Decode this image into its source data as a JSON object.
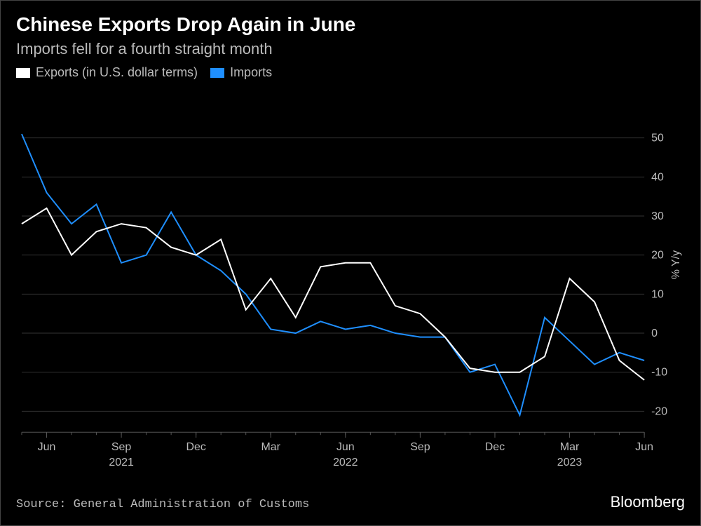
{
  "title": "Chinese Exports Drop Again in June",
  "subtitle": "Imports fell for a fourth straight month",
  "legend": {
    "exports": "Exports (in U.S. dollar terms)",
    "imports": "Imports"
  },
  "source": "Source: General Administration of Customs",
  "brand": "Bloomberg",
  "chart": {
    "type": "line",
    "background_color": "#000000",
    "grid_color": "#333333",
    "axis_text_color": "#bbbbbb",
    "y_axis_label": "% Y/y",
    "ylim": [
      -25,
      60
    ],
    "ytick_step": 10,
    "yticks": [
      -20,
      -10,
      0,
      10,
      20,
      30,
      40,
      50
    ],
    "x_months": [
      "May-21",
      "Jun-21",
      "Jul-21",
      "Aug-21",
      "Sep-21",
      "Oct-21",
      "Nov-21",
      "Dec-21",
      "Jan-22",
      "Feb-22",
      "Mar-22",
      "Apr-22",
      "May-22",
      "Jun-22",
      "Jul-22",
      "Aug-22",
      "Sep-22",
      "Oct-22",
      "Nov-22",
      "Dec-22",
      "Jan-23",
      "Feb-23",
      "Mar-23",
      "Apr-23",
      "May-23",
      "Jun-23"
    ],
    "x_ticks": [
      {
        "index": 1,
        "label": "Jun"
      },
      {
        "index": 4,
        "label": "Sep"
      },
      {
        "index": 7,
        "label": "Dec"
      },
      {
        "index": 10,
        "label": "Mar"
      },
      {
        "index": 13,
        "label": "Jun"
      },
      {
        "index": 16,
        "label": "Sep"
      },
      {
        "index": 19,
        "label": "Dec"
      },
      {
        "index": 22,
        "label": "Mar"
      },
      {
        "index": 25,
        "label": "Jun"
      }
    ],
    "year_labels": [
      {
        "index": 4,
        "label": "2021"
      },
      {
        "index": 13,
        "label": "2022"
      },
      {
        "index": 22,
        "label": "2023"
      }
    ],
    "series": {
      "exports": {
        "color": "#ffffff",
        "line_width": 2,
        "values": [
          28,
          32,
          20,
          26,
          28,
          27,
          22,
          20,
          24,
          6,
          14,
          4,
          17,
          18,
          18,
          7,
          5,
          -1,
          -9,
          -10,
          -10,
          -6,
          14,
          8,
          -7,
          -12
        ]
      },
      "imports": {
        "color": "#1f8fff",
        "line_width": 2,
        "values": [
          51,
          36,
          28,
          33,
          18,
          20,
          31,
          20,
          16,
          10,
          1,
          0,
          3,
          1,
          2,
          0,
          -1,
          -1,
          -10,
          -8,
          -21,
          4,
          -2,
          -8,
          -5,
          -7
        ]
      }
    }
  }
}
